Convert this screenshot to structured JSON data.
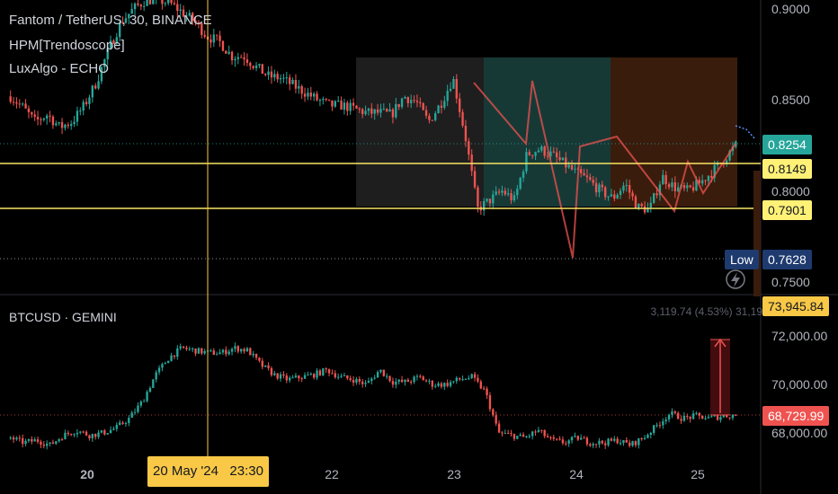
{
  "main_pane": {
    "symbol_title": "Fantom / TetherUS, 30, BINANCE",
    "indicators": [
      "HPM[Trendoscope]",
      "LuxAlgo - ECHO"
    ],
    "y_ticks": [
      "0.9000",
      "0.8500",
      "0.8000",
      "0.7500"
    ],
    "price_tags": {
      "last": "0.8254",
      "level_upper": "0.8149",
      "level_lower": "0.7901",
      "low_label": "Low",
      "low_value": "0.7628"
    }
  },
  "sub_pane": {
    "symbol_title": "BTCUSD · GEMINI",
    "y_ticks": [
      "72,000.00",
      "70,000.00",
      "68,000.00"
    ],
    "stats_text": "3,119.74 (4.53%) 31,19",
    "price_tags": {
      "top": "73,945.84",
      "last": "68,729.99"
    }
  },
  "time_axis": {
    "ticks": [
      "20",
      "22",
      "23",
      "24",
      "25"
    ],
    "crosshair_label": "20 May '24   23:30"
  },
  "colors": {
    "background": "#000000",
    "up": "#26a69a",
    "down": "#ef5350",
    "level_line": "#f7e463",
    "last_price_tag": "#26a69a",
    "level_tag": "#fff176",
    "low_tag": "#1e3a6e",
    "btc_last_tag": "#ef5350",
    "btc_top_tag": "#f9c846"
  },
  "chart_data": [
    {
      "type": "candlestick",
      "title": "Fantom / TetherUS, 30, BINANCE",
      "x": [
        "20",
        "22",
        "23",
        "24",
        "25"
      ],
      "close_path": [
        0.852,
        0.846,
        0.838,
        0.842,
        0.835,
        0.838,
        0.847,
        0.86,
        0.878,
        0.893,
        0.9,
        0.905,
        0.905,
        0.903,
        0.898,
        0.893,
        0.885,
        0.882,
        0.874,
        0.874,
        0.868,
        0.863,
        0.862,
        0.858,
        0.854,
        0.85,
        0.847,
        0.847,
        0.845,
        0.843,
        0.843,
        0.842,
        0.852,
        0.849,
        0.838,
        0.848,
        0.862,
        0.83,
        0.79,
        0.795,
        0.8,
        0.795,
        0.82,
        0.823,
        0.82,
        0.815,
        0.81,
        0.806,
        0.8,
        0.796,
        0.804,
        0.791,
        0.79,
        0.808,
        0.802,
        0.8,
        0.804,
        0.81,
        0.817,
        0.825
      ],
      "levels": [
        0.8254,
        0.8149,
        0.7901,
        0.7628
      ],
      "ylim": [
        0.75,
        0.9
      ]
    },
    {
      "type": "candlestick",
      "title": "BTCUSD · GEMINI",
      "x": [
        "20",
        "22",
        "23",
        "24",
        "25"
      ],
      "close_path": [
        67800,
        67600,
        67700,
        67500,
        67900,
        68100,
        67900,
        68000,
        68200,
        68600,
        69300,
        70400,
        71100,
        71500,
        71400,
        71300,
        71300,
        71500,
        71400,
        70800,
        70400,
        70200,
        70300,
        70400,
        70600,
        70300,
        70200,
        70000,
        70600,
        70100,
        70100,
        70300,
        70000,
        70000,
        70200,
        70300,
        69700,
        68000,
        67900,
        67800,
        68100,
        67700,
        67600,
        67800,
        67600,
        67600,
        67700,
        67500,
        67800,
        68300,
        68800,
        68600,
        68700,
        68600,
        68700,
        68730
      ],
      "levels": [
        73945.84,
        68729.99
      ],
      "ylim": [
        67500,
        73000
      ]
    }
  ]
}
